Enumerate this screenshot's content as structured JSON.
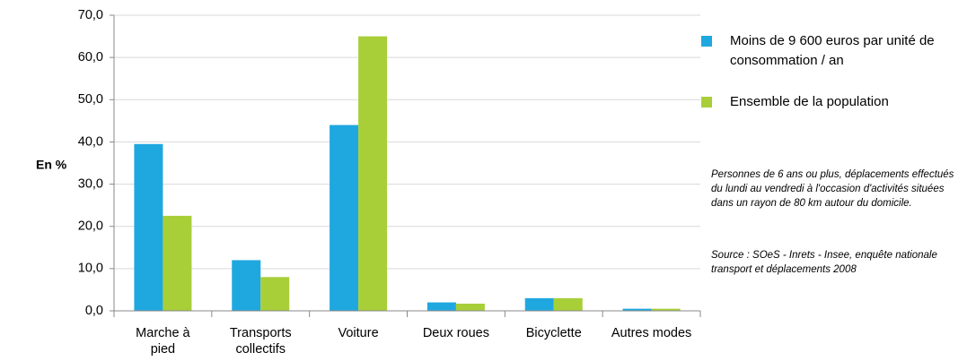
{
  "chart_data": {
    "type": "bar",
    "ylabel": "En %",
    "categories": [
      "Marche à pied",
      "Transports collectifs",
      "Voiture",
      "Deux roues",
      "Bicyclette",
      "Autres modes"
    ],
    "series": [
      {
        "name": "Moins de 9 600 euros par unité de consommation / an",
        "color": "#1fa8e0",
        "values": [
          39.5,
          12,
          44,
          2,
          3,
          0.5
        ]
      },
      {
        "name": "Ensemble de la population",
        "color": "#a8cf38",
        "values": [
          22.5,
          8,
          65,
          1.7,
          3,
          0.5
        ]
      }
    ],
    "ylim": [
      0,
      70
    ],
    "yticks": [
      {
        "value": 0,
        "label": "0,0"
      },
      {
        "value": 10,
        "label": "10,0"
      },
      {
        "value": 20,
        "label": "20,0"
      },
      {
        "value": 30,
        "label": "30,0"
      },
      {
        "value": 40,
        "label": "40,0"
      },
      {
        "value": 50,
        "label": "50,0"
      },
      {
        "value": 60,
        "label": "60,0"
      },
      {
        "value": 70,
        "label": "70,0"
      }
    ],
    "grid": true,
    "legend": "right",
    "notes": [
      "Personnes de 6 ans ou plus, déplacements effectués du lundi au vendredi à l'occasion d'activités situées dans un rayon de 80 km autour du domicile.",
      "Source : SOeS - Inrets - Insee, enquête nationale transport et déplacements 2008"
    ]
  }
}
